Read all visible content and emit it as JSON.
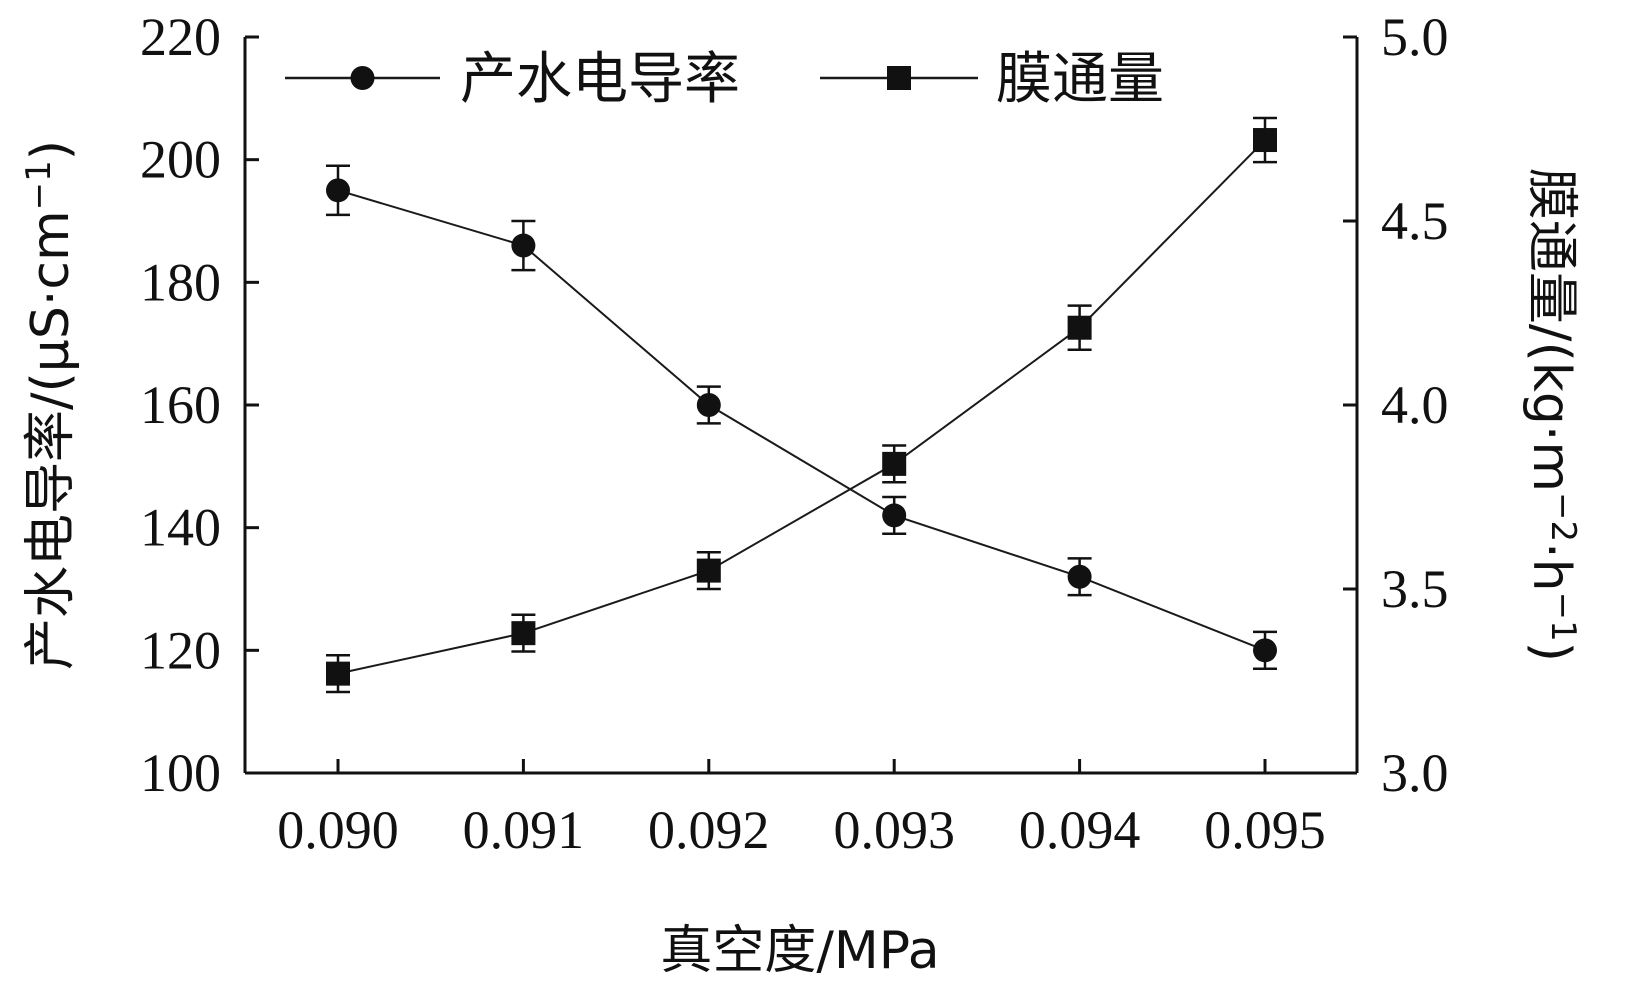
{
  "chart_data": {
    "type": "line",
    "x": [
      0.09,
      0.091,
      0.092,
      0.093,
      0.094,
      0.095
    ],
    "x_tick_labels": [
      "0.090",
      "0.091",
      "0.092",
      "0.093",
      "0.094",
      "0.095"
    ],
    "xlabel": "真空度/MPa",
    "ylabel_left": "产水电导率/(μS·cm",
    "ylabel_left_sup": "−1",
    "ylabel_left_close": ")",
    "ylabel_right": "膜通量/(kg·m",
    "ylabel_right_sup1": "−2",
    "ylabel_right_mid": "·h",
    "ylabel_right_sup2": "−1",
    "ylabel_right_close": ")",
    "ylim_left": [
      100,
      220
    ],
    "yticks_left": [
      "100",
      "120",
      "140",
      "160",
      "180",
      "200",
      "220"
    ],
    "ylim_right": [
      3.0,
      5.0
    ],
    "yticks_right": [
      "3.0",
      "3.5",
      "4.0",
      "4.5",
      "5.0"
    ],
    "legend_position": "top",
    "grid": false,
    "series": [
      {
        "name": "产水电导率",
        "axis": "left",
        "marker": "circle",
        "values": [
          195,
          186,
          160,
          142,
          132,
          120
        ],
        "errors": [
          4,
          4,
          3,
          3,
          3,
          3
        ]
      },
      {
        "name": "膜通量",
        "axis": "right",
        "marker": "square",
        "values": [
          3.27,
          3.38,
          3.55,
          3.84,
          4.21,
          4.72
        ],
        "errors": [
          0.05,
          0.05,
          0.05,
          0.05,
          0.06,
          0.06
        ]
      }
    ],
    "colors": {
      "line": "#1a1a1a",
      "marker": "#111111",
      "axis": "#111111"
    }
  }
}
